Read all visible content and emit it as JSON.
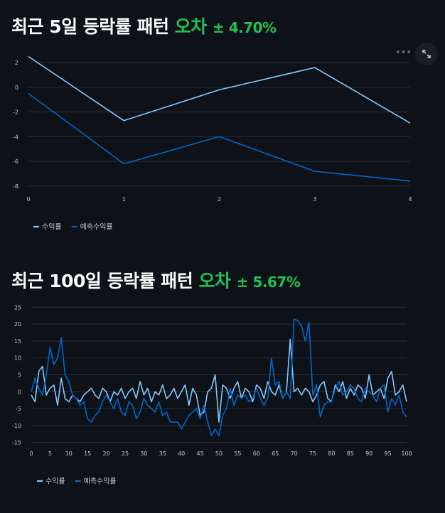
{
  "section1": {
    "title_prefix": "최근 5일 등락률 패턴",
    "title_accent": "오차",
    "error_text": "± 4.70%"
  },
  "section2": {
    "title_prefix": "최근 100일 등락률 패턴",
    "title_accent": "오차",
    "error_text": "± 5.67%"
  },
  "toolbar": {
    "more_icon": "more-dots-icon",
    "expand_icon": "fullscreen-expand-icon"
  },
  "colors": {
    "actual": "#83c9ff",
    "predicted": "#0068c9",
    "accent": "#21c354",
    "background": "#0e1117"
  },
  "chart_data": [
    {
      "type": "line",
      "x": [
        0,
        1,
        2,
        3,
        4
      ],
      "xticks": [
        0,
        1,
        2,
        3,
        4
      ],
      "yticks": [
        2,
        0,
        -2,
        -4,
        -6,
        -8
      ],
      "xlim": [
        0,
        4
      ],
      "ylim": [
        -8.3,
        2.7
      ],
      "grid": true,
      "legend_position": "bottom-left",
      "series": [
        {
          "name": "수익률",
          "color": "#83c9ff",
          "values": [
            2.5,
            -2.7,
            -0.2,
            1.6,
            -2.9
          ]
        },
        {
          "name": "예측수익률",
          "color": "#0068c9",
          "values": [
            -0.5,
            -6.2,
            -4.0,
            -6.8,
            -7.6
          ]
        }
      ]
    },
    {
      "type": "line",
      "x_start": 0,
      "xticks": [
        0,
        5,
        10,
        15,
        20,
        25,
        30,
        35,
        40,
        45,
        50,
        55,
        60,
        65,
        70,
        75,
        80,
        85,
        90,
        95,
        100
      ],
      "yticks": [
        25,
        20,
        15,
        10,
        5,
        0,
        -5,
        -10,
        -15
      ],
      "xlim": [
        0,
        100
      ],
      "ylim": [
        -15.5,
        25.5
      ],
      "grid": true,
      "legend_position": "bottom-left",
      "series": [
        {
          "name": "수익률",
          "color": "#83c9ff",
          "values": [
            -1,
            -3,
            6,
            7.5,
            -1,
            1,
            2,
            -4,
            4,
            -2,
            -3,
            -1,
            -2,
            -3,
            -1,
            0,
            1,
            -1,
            -2,
            1,
            0,
            -3,
            0,
            -1,
            1,
            -2,
            0,
            1,
            -2,
            3,
            -1,
            1,
            -3,
            0,
            -1,
            2,
            -2,
            -1,
            1,
            -2,
            0,
            2,
            -4,
            1,
            -1,
            -7,
            -6,
            0,
            1,
            5,
            -9,
            2,
            1,
            -2,
            1,
            3,
            -2,
            1,
            0,
            -3,
            2,
            1,
            -2,
            3,
            0,
            -1,
            2,
            -2,
            0,
            15.5,
            0,
            1,
            -1,
            1,
            0,
            -3,
            -1,
            2,
            3,
            -2,
            -3,
            2,
            0,
            3,
            -2,
            1,
            -1,
            2,
            1,
            -2,
            5,
            -1,
            0,
            1,
            -2,
            4,
            6,
            -1,
            0,
            2,
            -3
          ]
        },
        {
          "name": "예측수익률",
          "color": "#0068c9",
          "values": [
            0,
            4,
            1,
            -1,
            5,
            13,
            8,
            10,
            16,
            5,
            3,
            -1,
            -2,
            -4,
            -3,
            -8,
            -9,
            -7,
            -6,
            -3,
            -1,
            -3,
            -5,
            -2,
            -6,
            -7,
            -3,
            -4,
            -8,
            -6,
            -2,
            -4,
            -5,
            -6,
            -3,
            -7,
            -6,
            -9,
            -9,
            -9,
            -11,
            -9,
            -7,
            -6,
            -5,
            -8,
            -4,
            -9,
            -13,
            -11,
            -13,
            -7,
            -5,
            1,
            -4,
            -1,
            -2,
            -1,
            -3,
            -2,
            1,
            -2,
            -4,
            -2,
            10,
            2,
            3,
            -2,
            0,
            -2,
            21.5,
            21,
            19.5,
            15,
            20.5,
            -1,
            2,
            -7.5,
            -4,
            -3,
            -3,
            1,
            3,
            -1,
            0,
            2,
            1,
            -2,
            -3,
            1,
            0,
            -1,
            -3,
            1,
            2,
            -6,
            -2,
            -4,
            -1,
            -6,
            -7.5
          ]
        }
      ]
    }
  ]
}
